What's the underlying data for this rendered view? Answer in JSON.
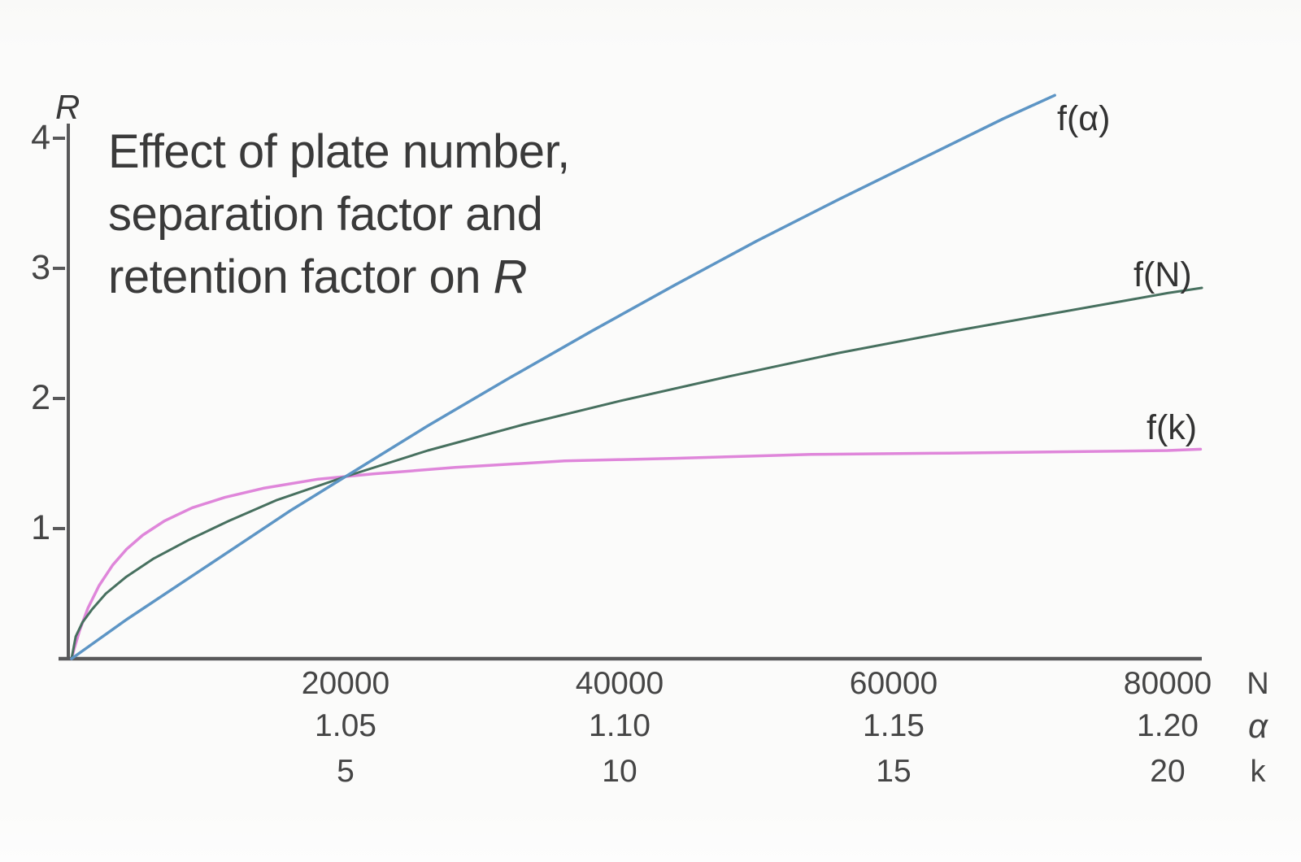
{
  "figure": {
    "title_lines": [
      "Effect of plate number,",
      "separation factor and",
      "retention factor on "
    ],
    "title_italic": "R",
    "y_axis": {
      "label": "R",
      "ticks": [
        "4",
        "3",
        "2",
        "1"
      ]
    },
    "x_axis": {
      "rows": [
        {
          "unit": "N",
          "ticks": [
            "20000",
            "40000",
            "60000",
            "80000"
          ]
        },
        {
          "unit": "α",
          "ticks": [
            "1.05",
            "1.10",
            "1.15",
            "1.20"
          ]
        },
        {
          "unit": "k",
          "ticks": [
            "5",
            "10",
            "15",
            "20"
          ]
        }
      ]
    },
    "curve_labels": {
      "f_alpha": "f(α)",
      "f_N": "f(N)",
      "f_k": "f(k)"
    }
  },
  "chart_data": {
    "type": "line",
    "title": "Effect of plate number, separation factor and retention factor on R",
    "ylabel": "R",
    "ylim": [
      0,
      4.4
    ],
    "grid": false,
    "legend_position": "inline-end-of-curve",
    "annotations": [
      "All three curves intersect at R ≈ 1.4 at the first tick (N=20000, α=1.05, k=5)",
      "Shared x-axis with three scales: plate number N (0–80000), separation factor α (1.00–1.20), retention factor k (0–20)"
    ],
    "axes_scales": {
      "N": {
        "tick_values": [
          20000,
          40000,
          60000,
          80000
        ],
        "origin_value": 0,
        "value_per_tick": 20000
      },
      "α": {
        "tick_values": [
          1.05,
          1.1,
          1.15,
          1.2
        ],
        "origin_value": 1.0,
        "value_per_tick": 0.05
      },
      "k": {
        "tick_values": [
          5,
          10,
          15,
          20
        ],
        "origin_value": 0,
        "value_per_tick": 5
      }
    },
    "y_ticks": [
      1,
      2,
      3,
      4
    ],
    "series": [
      {
        "name": "f(k)",
        "x_variable": "k",
        "color": "#df86da",
        "axis_offset": 0,
        "axis_scale": 5,
        "x": [
          0,
          0.05,
          0.15,
          0.3,
          0.5,
          0.75,
          1,
          1.3,
          1.7,
          2.2,
          2.8,
          3.5,
          4.5,
          5.5,
          7,
          9,
          11,
          13.5,
          16,
          18,
          20,
          20.6
        ],
        "R": [
          0,
          0.08,
          0.22,
          0.39,
          0.56,
          0.72,
          0.84,
          0.95,
          1.06,
          1.16,
          1.24,
          1.31,
          1.38,
          1.42,
          1.47,
          1.52,
          1.54,
          1.57,
          1.58,
          1.59,
          1.6,
          1.61
        ]
      },
      {
        "name": "f(N)",
        "x_variable": "N",
        "color": "#47705f",
        "axis_offset": 0,
        "axis_scale": 20000,
        "x": [
          0,
          300,
          800,
          1500,
          2500,
          4000,
          6000,
          8500,
          11500,
          15000,
          20000,
          26000,
          33000,
          40000,
          48000,
          56000,
          64000,
          72000,
          80000,
          82500
        ],
        "R": [
          0,
          0.17,
          0.28,
          0.38,
          0.5,
          0.63,
          0.77,
          0.91,
          1.06,
          1.22,
          1.4,
          1.6,
          1.8,
          1.98,
          2.17,
          2.35,
          2.51,
          2.66,
          2.81,
          2.85
        ]
      },
      {
        "name": "f(α)",
        "x_variable": "α",
        "color": "#5d95c5",
        "axis_offset": 1,
        "axis_scale": 0.05,
        "x": [
          1.0,
          1.005,
          1.01,
          1.02,
          1.03,
          1.04,
          1.05,
          1.065,
          1.08,
          1.095,
          1.11,
          1.125,
          1.14,
          1.155,
          1.17,
          1.1794
        ],
        "R": [
          0,
          0.15,
          0.3,
          0.58,
          0.86,
          1.14,
          1.4,
          1.79,
          2.16,
          2.52,
          2.87,
          3.21,
          3.53,
          3.84,
          4.15,
          4.33
        ]
      }
    ]
  }
}
